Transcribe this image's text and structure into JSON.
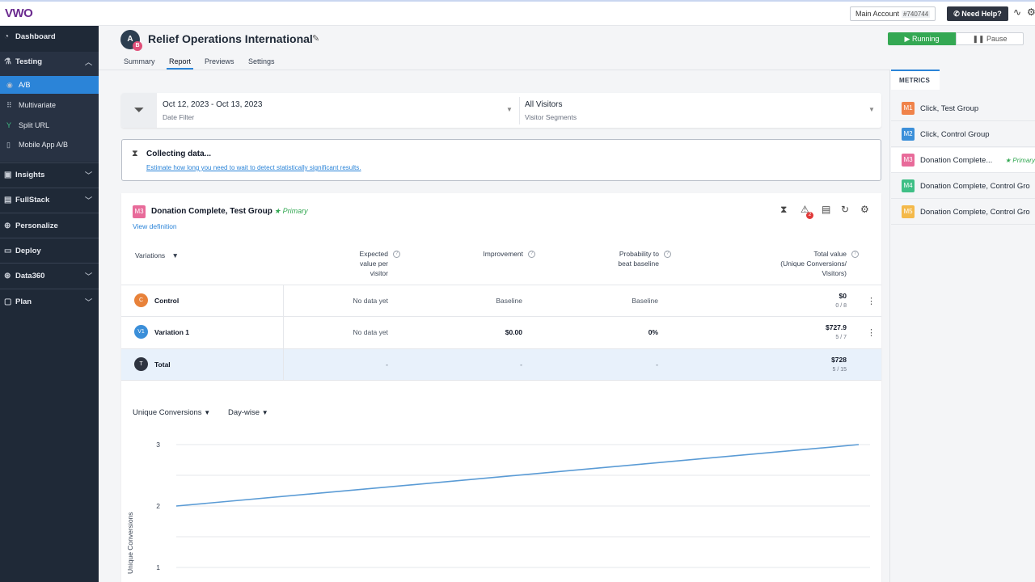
{
  "topbar": {
    "logo_text": "VWO",
    "account_label": "Main Account",
    "account_number": "#740744",
    "help_label": "Need Help?",
    "icons": [
      "heartbeat-icon",
      "gear-icon"
    ]
  },
  "sidebar": {
    "items": [
      {
        "label": "Dashboard",
        "icon": "dashboard-icon"
      },
      {
        "label": "Testing",
        "icon": "flask-icon"
      },
      {
        "label": "Insights",
        "icon": "insights-icon"
      },
      {
        "label": "FullStack",
        "icon": "fullstack-icon"
      },
      {
        "label": "Personalize",
        "icon": "globe-icon"
      },
      {
        "label": "Deploy",
        "icon": "deploy-icon"
      },
      {
        "label": "Data360",
        "icon": "database-icon"
      },
      {
        "label": "Plan",
        "icon": "plan-icon"
      }
    ],
    "testing_sub": [
      {
        "label": "A/B",
        "active": true
      },
      {
        "label": "Multivariate"
      },
      {
        "label": "Split URL"
      },
      {
        "label": "Mobile App A/B"
      }
    ]
  },
  "header": {
    "avatar_text": "A",
    "avatar_sub": "B",
    "campaign_title": "Relief Operations International",
    "tabs": [
      "Summary",
      "Report",
      "Previews",
      "Settings"
    ],
    "active_tab": "Report",
    "running_label": "Running",
    "pause_label": "Pause"
  },
  "filters": {
    "date_value": "Oct 12, 2023 - Oct 13, 2023",
    "date_label": "Date Filter",
    "segment_value": "All Visitors",
    "segment_label": "Visitor Segments"
  },
  "collecting": {
    "title": "Collecting data...",
    "link": "Estimate how long you need to wait to detect statistically significant results."
  },
  "report": {
    "metric_badge": "M3",
    "goal_title": "Donation Complete, Test Group",
    "primary_label": "Primary",
    "view_definition": "View definition",
    "warning_count": "2",
    "columns": {
      "variations": "Variations",
      "expected": [
        "Expected",
        "value per",
        "visitor"
      ],
      "improvement": "Improvement",
      "probability": [
        "Probability to",
        "beat baseline"
      ],
      "total": [
        "Total value",
        "(Unique Conversions/",
        "Visitors)"
      ]
    },
    "rows": [
      {
        "badge": "C",
        "name": "Control",
        "expected": "No data yet",
        "improvement": "Baseline",
        "probability": "Baseline",
        "total": "$0",
        "ratio": "0 / 8",
        "color": "#e8823a"
      },
      {
        "badge": "V1",
        "name": "Variation 1",
        "expected": "No data yet",
        "improvement": "$0.00",
        "probability": "0%",
        "total": "$727.9",
        "ratio": "5 / 7",
        "color": "#3b8fd9"
      },
      {
        "badge": "T",
        "name": "Total",
        "expected": "-",
        "improvement": "-",
        "probability": "-",
        "total": "$728",
        "ratio": "5 / 15",
        "color": "#2e3440"
      }
    ]
  },
  "chart_controls": {
    "metric_dropdown": "Unique Conversions",
    "period_dropdown": "Day-wise"
  },
  "chart_data": {
    "type": "line",
    "ylabel": "Unique Conversions",
    "yticks": [
      1,
      2,
      3
    ],
    "ylim": [
      1,
      3
    ],
    "series": [
      {
        "values": [
          2,
          3
        ],
        "color": "#5a9bd5"
      }
    ]
  },
  "metrics_panel": {
    "tab_label": "METRICS",
    "items": [
      {
        "badge": "M1",
        "label": "Click, Test Group",
        "color": "#f0834a"
      },
      {
        "badge": "M2",
        "label": "Click, Control Group",
        "color": "#3b8fd9"
      },
      {
        "badge": "M3",
        "label": "Donation Complete...",
        "color": "#e86b9a",
        "primary": "Primary",
        "selected": true
      },
      {
        "badge": "M4",
        "label": "Donation Complete, Control Gro",
        "color": "#3fbf86"
      },
      {
        "badge": "M5",
        "label": "Donation Complete, Control Gro",
        "color": "#f4b94a"
      }
    ]
  }
}
